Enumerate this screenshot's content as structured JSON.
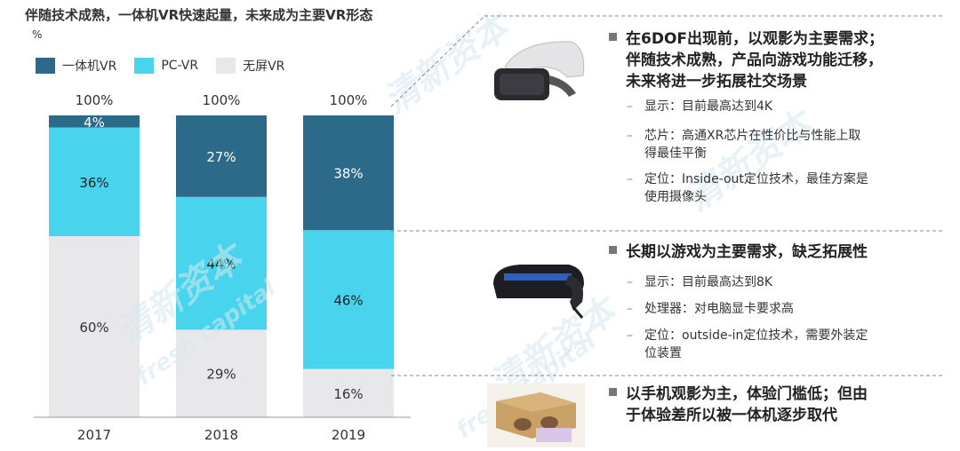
{
  "header": {
    "title": "伴随技术成熟，一体机VR快速起量，未来成为主要VR形态",
    "unit": "%"
  },
  "colors": {
    "standalone": "#2d6a8a",
    "pcvr": "#48d4ec",
    "screenless": "#e8e8ea"
  },
  "chart_data": {
    "type": "bar",
    "stacked": true,
    "categories": [
      "2017",
      "2018",
      "2019"
    ],
    "totals": [
      "100%",
      "100%",
      "100%"
    ],
    "series": [
      {
        "name": "无屏VR",
        "values": [
          60,
          29,
          16
        ]
      },
      {
        "name": "PC-VR",
        "values": [
          36,
          44,
          46
        ]
      },
      {
        "name": "一体机VR",
        "values": [
          4,
          27,
          38
        ]
      }
    ],
    "ylim": [
      0,
      100
    ],
    "legend": "top-left",
    "grid": false
  },
  "legend": [
    {
      "label": "一体机VR",
      "color": "#2d6a8a"
    },
    {
      "label": "PC-VR",
      "color": "#48d4ec"
    },
    {
      "label": "无屏VR",
      "color": "#e8e8ea"
    }
  ],
  "watermark": [
    "清新资本",
    "fresh capital"
  ],
  "panels": [
    {
      "title": [
        "在6DOF出现前，以观影为主要需求；",
        "伴随技术成熟，产品向游戏功能迁移，",
        "未来将进一步拓展社交场景"
      ],
      "items": [
        [
          "显示：目前最高达到4K"
        ],
        [
          "芯片：高通XR芯片在性价比与性能上取",
          "得最佳平衡"
        ],
        [
          "定位：Inside-out定位技术，最佳方案是",
          "使用摄像头"
        ]
      ],
      "icon": "standalone-vr-headset-icon"
    },
    {
      "title": [
        "长期以游戏为主要需求，缺乏拓展性"
      ],
      "items": [
        [
          "显示：目前最高达到8K"
        ],
        [
          "处理器：对电脑显卡要求高"
        ],
        [
          "定位：outside-in定位技术，需要外装定",
          "位装置"
        ]
      ],
      "icon": "pc-vr-headset-icon"
    },
    {
      "title": [
        "以手机观影为主，体验门槛低；但由",
        "于体验差所以被一体机逐步取代"
      ],
      "items": [],
      "icon": "cardboard-vr-icon"
    }
  ]
}
